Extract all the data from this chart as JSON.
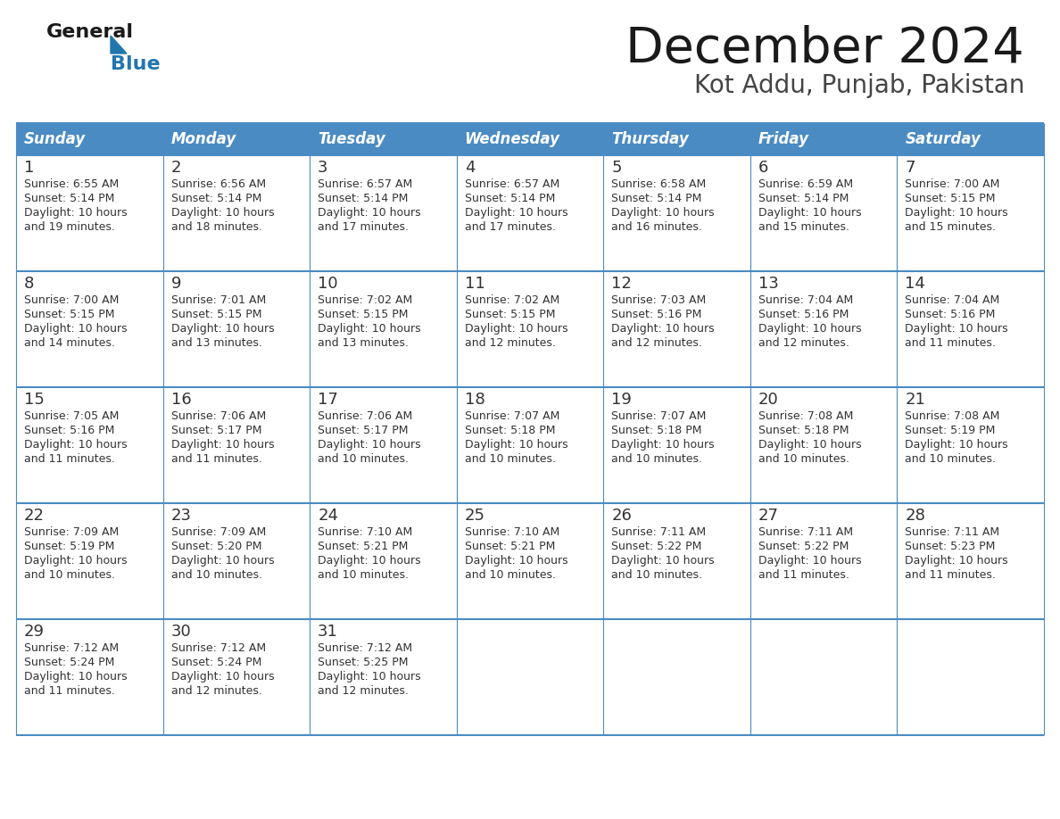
{
  "title": "December 2024",
  "subtitle": "Kot Addu, Punjab, Pakistan",
  "header_bg_color": "#4a8bc4",
  "header_text_color": "#ffffff",
  "days_of_week": [
    "Sunday",
    "Monday",
    "Tuesday",
    "Wednesday",
    "Thursday",
    "Friday",
    "Saturday"
  ],
  "calendar_data": [
    [
      {
        "day": 1,
        "sunrise": "6:55 AM",
        "sunset": "5:14 PM",
        "daylight": "10 hours and 19 minutes."
      },
      {
        "day": 2,
        "sunrise": "6:56 AM",
        "sunset": "5:14 PM",
        "daylight": "10 hours and 18 minutes."
      },
      {
        "day": 3,
        "sunrise": "6:57 AM",
        "sunset": "5:14 PM",
        "daylight": "10 hours and 17 minutes."
      },
      {
        "day": 4,
        "sunrise": "6:57 AM",
        "sunset": "5:14 PM",
        "daylight": "10 hours and 17 minutes."
      },
      {
        "day": 5,
        "sunrise": "6:58 AM",
        "sunset": "5:14 PM",
        "daylight": "10 hours and 16 minutes."
      },
      {
        "day": 6,
        "sunrise": "6:59 AM",
        "sunset": "5:14 PM",
        "daylight": "10 hours and 15 minutes."
      },
      {
        "day": 7,
        "sunrise": "7:00 AM",
        "sunset": "5:15 PM",
        "daylight": "10 hours and 15 minutes."
      }
    ],
    [
      {
        "day": 8,
        "sunrise": "7:00 AM",
        "sunset": "5:15 PM",
        "daylight": "10 hours and 14 minutes."
      },
      {
        "day": 9,
        "sunrise": "7:01 AM",
        "sunset": "5:15 PM",
        "daylight": "10 hours and 13 minutes."
      },
      {
        "day": 10,
        "sunrise": "7:02 AM",
        "sunset": "5:15 PM",
        "daylight": "10 hours and 13 minutes."
      },
      {
        "day": 11,
        "sunrise": "7:02 AM",
        "sunset": "5:15 PM",
        "daylight": "10 hours and 12 minutes."
      },
      {
        "day": 12,
        "sunrise": "7:03 AM",
        "sunset": "5:16 PM",
        "daylight": "10 hours and 12 minutes."
      },
      {
        "day": 13,
        "sunrise": "7:04 AM",
        "sunset": "5:16 PM",
        "daylight": "10 hours and 12 minutes."
      },
      {
        "day": 14,
        "sunrise": "7:04 AM",
        "sunset": "5:16 PM",
        "daylight": "10 hours and 11 minutes."
      }
    ],
    [
      {
        "day": 15,
        "sunrise": "7:05 AM",
        "sunset": "5:16 PM",
        "daylight": "10 hours and 11 minutes."
      },
      {
        "day": 16,
        "sunrise": "7:06 AM",
        "sunset": "5:17 PM",
        "daylight": "10 hours and 11 minutes."
      },
      {
        "day": 17,
        "sunrise": "7:06 AM",
        "sunset": "5:17 PM",
        "daylight": "10 hours and 10 minutes."
      },
      {
        "day": 18,
        "sunrise": "7:07 AM",
        "sunset": "5:18 PM",
        "daylight": "10 hours and 10 minutes."
      },
      {
        "day": 19,
        "sunrise": "7:07 AM",
        "sunset": "5:18 PM",
        "daylight": "10 hours and 10 minutes."
      },
      {
        "day": 20,
        "sunrise": "7:08 AM",
        "sunset": "5:18 PM",
        "daylight": "10 hours and 10 minutes."
      },
      {
        "day": 21,
        "sunrise": "7:08 AM",
        "sunset": "5:19 PM",
        "daylight": "10 hours and 10 minutes."
      }
    ],
    [
      {
        "day": 22,
        "sunrise": "7:09 AM",
        "sunset": "5:19 PM",
        "daylight": "10 hours and 10 minutes."
      },
      {
        "day": 23,
        "sunrise": "7:09 AM",
        "sunset": "5:20 PM",
        "daylight": "10 hours and 10 minutes."
      },
      {
        "day": 24,
        "sunrise": "7:10 AM",
        "sunset": "5:21 PM",
        "daylight": "10 hours and 10 minutes."
      },
      {
        "day": 25,
        "sunrise": "7:10 AM",
        "sunset": "5:21 PM",
        "daylight": "10 hours and 10 minutes."
      },
      {
        "day": 26,
        "sunrise": "7:11 AM",
        "sunset": "5:22 PM",
        "daylight": "10 hours and 10 minutes."
      },
      {
        "day": 27,
        "sunrise": "7:11 AM",
        "sunset": "5:22 PM",
        "daylight": "10 hours and 11 minutes."
      },
      {
        "day": 28,
        "sunrise": "7:11 AM",
        "sunset": "5:23 PM",
        "daylight": "10 hours and 11 minutes."
      }
    ],
    [
      {
        "day": 29,
        "sunrise": "7:12 AM",
        "sunset": "5:24 PM",
        "daylight": "10 hours and 11 minutes."
      },
      {
        "day": 30,
        "sunrise": "7:12 AM",
        "sunset": "5:24 PM",
        "daylight": "10 hours and 12 minutes."
      },
      {
        "day": 31,
        "sunrise": "7:12 AM",
        "sunset": "5:25 PM",
        "daylight": "10 hours and 12 minutes."
      },
      null,
      null,
      null,
      null
    ]
  ],
  "logo_triangle_color": "#2176ae",
  "line_color": "#4a8bc4",
  "fig_width": 11.88,
  "fig_height": 9.18,
  "dpi": 100
}
